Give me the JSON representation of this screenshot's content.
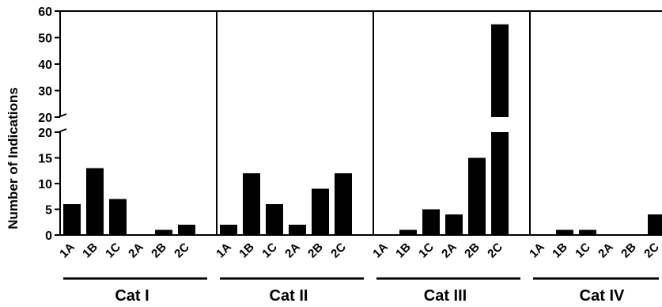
{
  "chart_data": {
    "type": "bar",
    "ylabel": "Number of Indications",
    "groups": [
      {
        "name": "Cat I",
        "categories": [
          "1A",
          "1B",
          "1C",
          "2A",
          "2B",
          "2C"
        ],
        "values": [
          6,
          13,
          7,
          0,
          1,
          2
        ]
      },
      {
        "name": "Cat II",
        "categories": [
          "1A",
          "1B",
          "1C",
          "2A",
          "2B",
          "2C"
        ],
        "values": [
          2,
          12,
          6,
          2,
          9,
          12
        ]
      },
      {
        "name": "Cat III",
        "categories": [
          "1A",
          "1B",
          "1C",
          "2A",
          "2B",
          "2C"
        ],
        "values": [
          0,
          1,
          5,
          4,
          15,
          55
        ]
      },
      {
        "name": "Cat IV",
        "categories": [
          "1A",
          "1B",
          "1C",
          "2A",
          "2B",
          "2C"
        ],
        "values": [
          0,
          1,
          1,
          0,
          0,
          4
        ]
      }
    ],
    "y_axis": {
      "broken": true,
      "lower_segment": {
        "ylim": [
          0,
          20
        ],
        "ticks": [
          0,
          5,
          10,
          15,
          20
        ]
      },
      "upper_segment": {
        "ylim": [
          20,
          60
        ],
        "ticks": [
          20,
          30,
          40,
          50,
          60
        ]
      }
    },
    "bar_color": "#000000",
    "grid": false,
    "legend": "none"
  }
}
